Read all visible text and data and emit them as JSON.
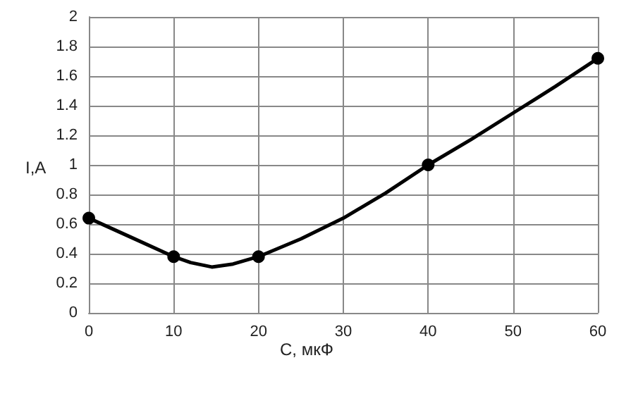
{
  "chart_data": {
    "type": "line",
    "xlabel": "C, мкФ",
    "ylabel": "I,A",
    "xlim": [
      0,
      60
    ],
    "xticks": [
      0,
      10,
      20,
      30,
      40,
      50,
      60
    ],
    "ylim": [
      0,
      2
    ],
    "yticks": [
      0,
      0.2,
      0.4,
      0.6,
      0.8,
      1,
      1.2,
      1.4,
      1.6,
      1.8,
      2
    ],
    "grid": true,
    "series": [
      {
        "type": "line",
        "color": "#000000",
        "marker": "none",
        "x": [
          0,
          5,
          10,
          12,
          14.5,
          17,
          20,
          25,
          30,
          35,
          40,
          45,
          50,
          55,
          60
        ],
        "values": [
          0.64,
          0.51,
          0.38,
          0.34,
          0.31,
          0.33,
          0.38,
          0.5,
          0.64,
          0.81,
          1.0,
          1.17,
          1.35,
          1.53,
          1.72
        ]
      },
      {
        "type": "scatter",
        "color": "#000000",
        "marker": "circle",
        "x": [
          0,
          10,
          20,
          40,
          60
        ],
        "values": [
          0.64,
          0.38,
          0.38,
          1.0,
          1.72
        ]
      }
    ]
  }
}
